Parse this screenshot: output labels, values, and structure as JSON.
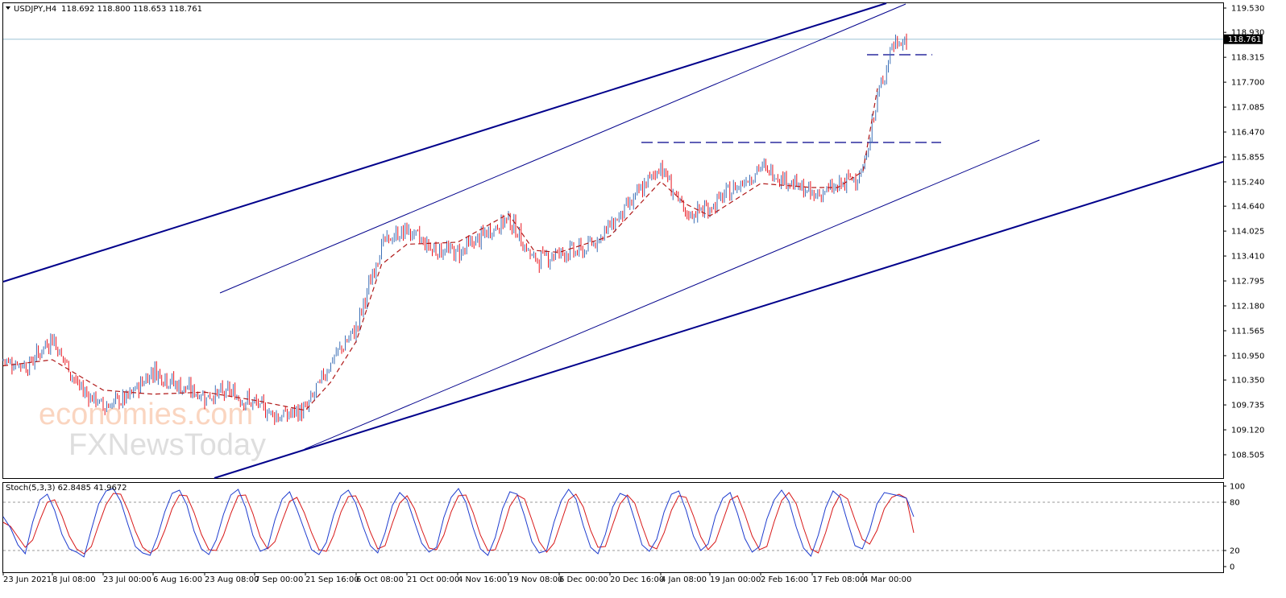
{
  "header": {
    "symbol": "USDJPY,H4",
    "ohlc": "118.692 118.800 118.653 118.761"
  },
  "stoch_header": {
    "label": "Stoch(5,3,3) 62.8485 41.9672"
  },
  "watermark": {
    "line1": "economies.com",
    "line2": "FXNewsToday"
  },
  "colors": {
    "bull": "#3b6fb6",
    "bear": "#e8141e",
    "ma": "#b01818",
    "trendline": "#00008b",
    "stoch_main": "#1e3ccf",
    "stoch_signal": "#d81818"
  },
  "chart_data": [
    {
      "type": "line",
      "title": "USDJPY,H4",
      "current_price": 118.761,
      "current_price_label": "118.761",
      "ylim": [
        108.505,
        119.53
      ],
      "y_ticks": [
        "119.530",
        "118.930",
        "118.315",
        "117.700",
        "117.085",
        "116.470",
        "115.855",
        "115.240",
        "114.640",
        "114.025",
        "113.410",
        "112.795",
        "112.180",
        "111.565",
        "110.950",
        "110.350",
        "109.735",
        "109.120",
        "108.505"
      ],
      "x_ticks": [
        "23 Jun 2021",
        "8 Jul 08:00",
        "23 Jul 00:00",
        "6 Aug 16:00",
        "23 Aug 08:00",
        "7 Sep 00:00",
        "21 Sep 16:00",
        "6 Oct 08:00",
        "21 Oct 00:00",
        "4 Nov 16:00",
        "19 Nov 08:00",
        "6 Dec 00:00",
        "20 Dec 16:00",
        "4 Jan 08:00",
        "19 Jan 00:00",
        "2 Feb 16:00",
        "17 Feb 08:00",
        "4 Mar 00:00"
      ],
      "series": [
        {
          "key": "price",
          "x": [
            "23 Jun 2021",
            "30 Jun 2021",
            "8 Jul 08:00",
            "15 Jul 2021",
            "23 Jul 00:00",
            "30 Jul 2021",
            "6 Aug 16:00",
            "14 Aug 2021",
            "23 Aug 08:00",
            "31 Aug 2021",
            "7 Sep 00:00",
            "14 Sep 2021",
            "21 Sep 16:00",
            "28 Sep 2021",
            "6 Oct 08:00",
            "13 Oct 2021",
            "21 Oct 00:00",
            "28 Oct 2021",
            "4 Nov 16:00",
            "11 Nov 2021",
            "19 Nov 08:00",
            "26 Nov 2021",
            "6 Dec 00:00",
            "13 Dec 2021",
            "20 Dec 16:00",
            "28 Dec 2021",
            "4 Jan 08:00",
            "11 Jan 2022",
            "19 Jan 00:00",
            "26 Jan 2022",
            "2 Feb 16:00",
            "9 Feb 2022",
            "17 Feb 08:00",
            "24 Feb 2022",
            "4 Mar 00:00",
            "8 Mar 2022",
            "10 Mar 2022",
            "11 Mar 2022"
          ],
          "values": [
            110.85,
            110.7,
            111.4,
            110.2,
            109.7,
            109.9,
            110.6,
            110.2,
            109.95,
            110.05,
            109.75,
            109.45,
            109.6,
            110.8,
            111.6,
            113.7,
            114.05,
            113.6,
            113.5,
            113.9,
            114.35,
            113.3,
            113.5,
            113.55,
            114.15,
            114.85,
            115.65,
            114.4,
            114.6,
            115.1,
            115.6,
            115.3,
            114.9,
            115.1,
            115.5,
            117.3,
            118.6,
            118.761
          ]
        },
        {
          "key": "ma",
          "x": [
            "23 Jun 2021",
            "8 Jul 08:00",
            "23 Jul 00:00",
            "6 Aug 16:00",
            "23 Aug 08:00",
            "7 Sep 00:00",
            "21 Sep 16:00",
            "28 Sep 2021",
            "6 Oct 08:00",
            "13 Oct 2021",
            "21 Oct 00:00",
            "4 Nov 16:00",
            "19 Nov 08:00",
            "26 Nov 2021",
            "6 Dec 00:00",
            "20 Dec 16:00",
            "4 Jan 08:00",
            "11 Jan 2022",
            "19 Jan 00:00",
            "2 Feb 16:00",
            "17 Feb 08:00",
            "24 Feb 2022",
            "4 Mar 00:00",
            "8 Mar 2022"
          ],
          "values": [
            110.7,
            110.85,
            110.1,
            110.0,
            110.05,
            109.85,
            109.6,
            110.3,
            111.3,
            113.2,
            113.7,
            113.75,
            114.45,
            113.55,
            113.5,
            113.9,
            115.25,
            114.7,
            114.4,
            115.2,
            115.1,
            115.1,
            115.5,
            117.55
          ]
        }
      ]
    },
    {
      "type": "line",
      "title": "Stoch(5,3,3) 62.8485 41.9672",
      "ylim": [
        0,
        100
      ],
      "y_ticks": [
        "100",
        "80",
        "20",
        "0"
      ],
      "levels": [
        80,
        20
      ],
      "series": [
        {
          "key": "main",
          "values": [
            62,
            48,
            27,
            16,
            55,
            83,
            90,
            70,
            40,
            22,
            18,
            12,
            46,
            78,
            94,
            97,
            81,
            52,
            25,
            17,
            14,
            37,
            68,
            91,
            95,
            77,
            44,
            22,
            15,
            33,
            65,
            89,
            96,
            74,
            39,
            19,
            23,
            58,
            84,
            93,
            71,
            46,
            21,
            15,
            30,
            64,
            88,
            95,
            79,
            50,
            26,
            17,
            42,
            76,
            92,
            83,
            56,
            29,
            18,
            24,
            61,
            86,
            97,
            80,
            48,
            22,
            14,
            36,
            72,
            93,
            90,
            63,
            31,
            17,
            20,
            55,
            82,
            96,
            84,
            51,
            24,
            16,
            40,
            74,
            91,
            87,
            58,
            27,
            19,
            34,
            68,
            90,
            94,
            70,
            38,
            20,
            28,
            63,
            85,
            92,
            66,
            35,
            18,
            25,
            59,
            83,
            95,
            81,
            49,
            23,
            13,
            39,
            73,
            94,
            86,
            55,
            26,
            22,
            45,
            78,
            92,
            90,
            88,
            85,
            62
          ]
        },
        {
          "key": "signal",
          "values": [
            55,
            50,
            37,
            24,
            33,
            58,
            80,
            83,
            63,
            38,
            22,
            16,
            25,
            52,
            77,
            91,
            90,
            70,
            44,
            24,
            17,
            23,
            45,
            72,
            89,
            88,
            67,
            40,
            21,
            20,
            39,
            66,
            88,
            89,
            66,
            37,
            22,
            31,
            57,
            81,
            86,
            67,
            42,
            21,
            19,
            39,
            68,
            87,
            88,
            69,
            43,
            22,
            26,
            54,
            79,
            88,
            72,
            46,
            23,
            21,
            39,
            68,
            88,
            89,
            67,
            39,
            20,
            21,
            45,
            75,
            89,
            84,
            58,
            31,
            18,
            29,
            56,
            83,
            90,
            74,
            45,
            24,
            25,
            52,
            78,
            89,
            79,
            51,
            26,
            22,
            42,
            70,
            88,
            86,
            63,
            37,
            21,
            31,
            57,
            83,
            88,
            65,
            38,
            21,
            25,
            56,
            82,
            92,
            78,
            48,
            22,
            17,
            42,
            73,
            90,
            84,
            58,
            34,
            28,
            45,
            72,
            86,
            90,
            85,
            42
          ]
        }
      ]
    }
  ]
}
